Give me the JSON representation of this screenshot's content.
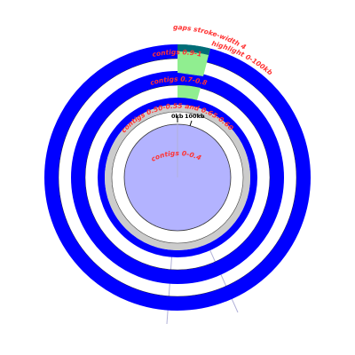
{
  "labels": {
    "gaps": "gaps stroke-width 4",
    "highlight": "highlight 0-100kb",
    "contigs_1": "contigs 0.9-1.0",
    "contigs_2": "contigs 0.7-0.8",
    "contigs_3": "contigs 0.50-0.55 and 0.65-0.60",
    "contigs_4": "contigs 0-0.4",
    "tick_0": "0kb",
    "tick_100": "100kb"
  },
  "colors": {
    "contig_blue": "#0000ff",
    "inner_fill": "#b3b3ff",
    "highlight_green": "#90ee90",
    "gap_teal": "#006d77",
    "grey_band": "#cccccc",
    "label_red": "#ff3333",
    "line_grey": "#b0b0d8"
  }
}
